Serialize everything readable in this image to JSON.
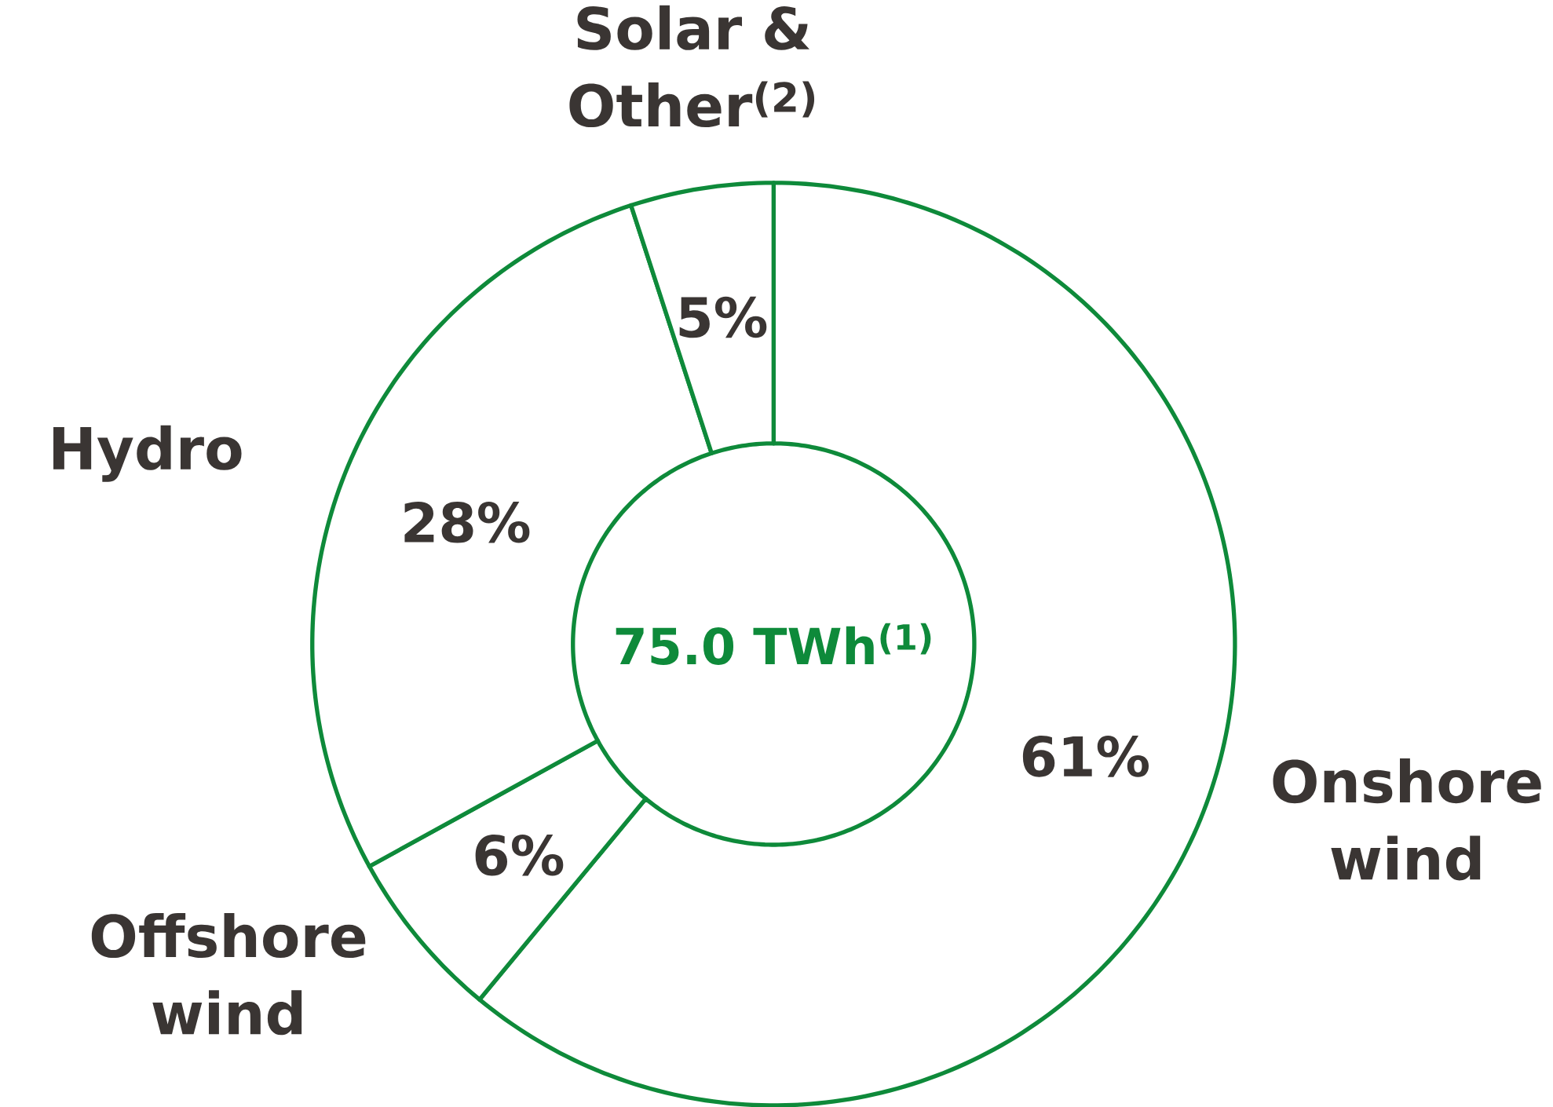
{
  "chart_data": {
    "type": "donut",
    "categories": [
      "Onshore wind",
      "Offshore wind",
      "Hydro",
      "Solar & Other$^{(2)}$"
    ],
    "values": [
      61,
      6,
      28,
      5
    ],
    "colors": [
      "#ffffff",
      "#ffffff",
      "#ffffff",
      "#ffffff"
    ],
    "value_labels": [
      "61%",
      "6%",
      "28%",
      "5%"
    ],
    "annotations": [
      "75.0 TWh$^{(1)}$"
    ]
  }
}
